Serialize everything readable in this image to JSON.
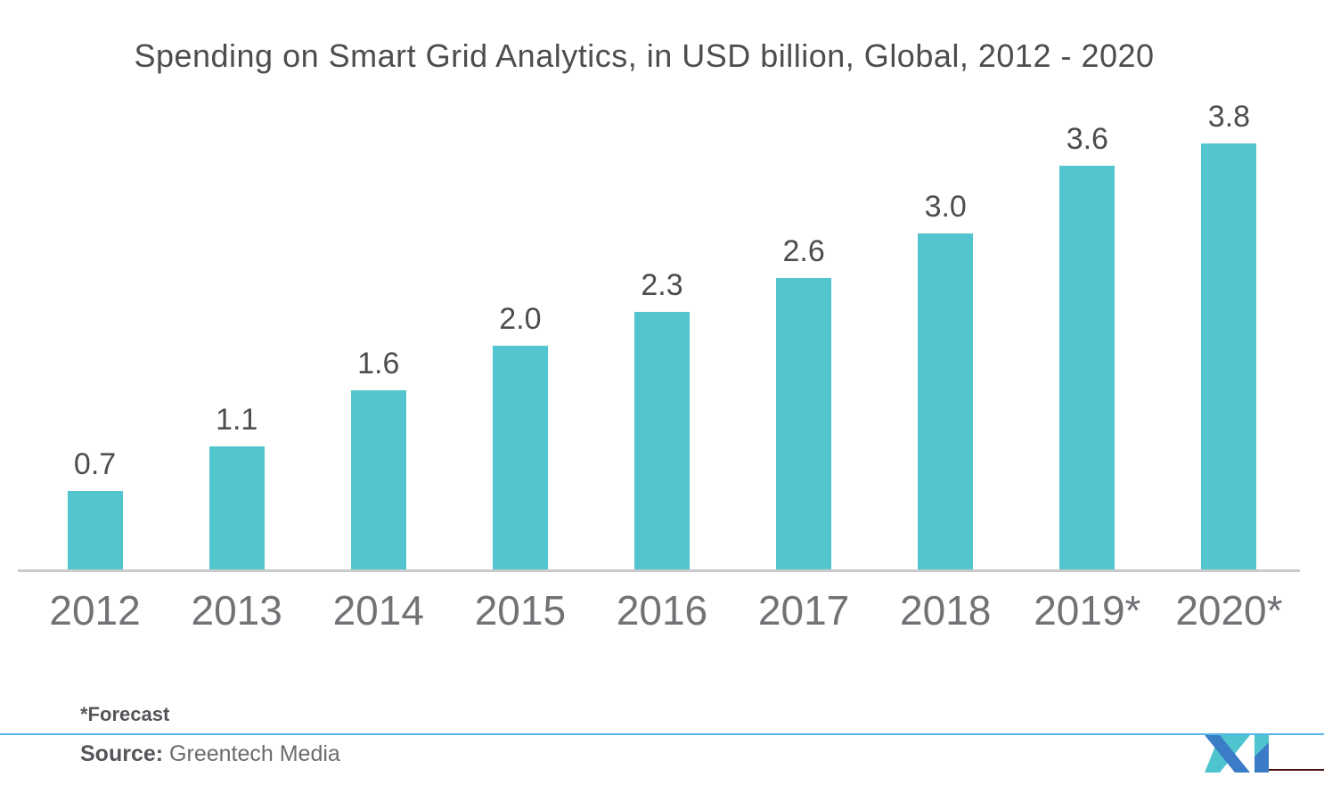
{
  "title": "Spending on Smart Grid Analytics, in USD billion, Global, 2012 - 2020",
  "chart_data": {
    "type": "bar",
    "title": "Spending on Smart Grid Analytics, in USD billion, Global, 2012 - 2020",
    "categories": [
      "2012",
      "2013",
      "2014",
      "2015",
      "2016",
      "2017",
      "2018",
      "2019*",
      "2020*"
    ],
    "values": [
      0.7,
      1.1,
      1.6,
      2.0,
      2.3,
      2.6,
      3.0,
      3.6,
      3.8
    ],
    "value_labels": [
      "0.7",
      "1.1",
      "1.6",
      "2.0",
      "2.3",
      "2.6",
      "3.0",
      "3.6",
      "3.8"
    ],
    "xlabel": "",
    "ylabel": "",
    "ylim": [
      0,
      4.2
    ],
    "grid": false,
    "legend": "none",
    "bar_color": "#52c5ce",
    "value_label_color": "#4d4d4f",
    "category_label_color": "#717275",
    "axis_line_color": "#c9cacc"
  },
  "footer": {
    "forecast_note": "*Forecast",
    "source_label": "Source:",
    "source_value": "Greentech Media",
    "divider_color": "#55b7e8",
    "logo_rule_color": "#4e1112"
  },
  "logo": {
    "name": "mordor-intelligence-mark",
    "blue": "#3b7cc7",
    "teal": "#4ec4ce"
  }
}
